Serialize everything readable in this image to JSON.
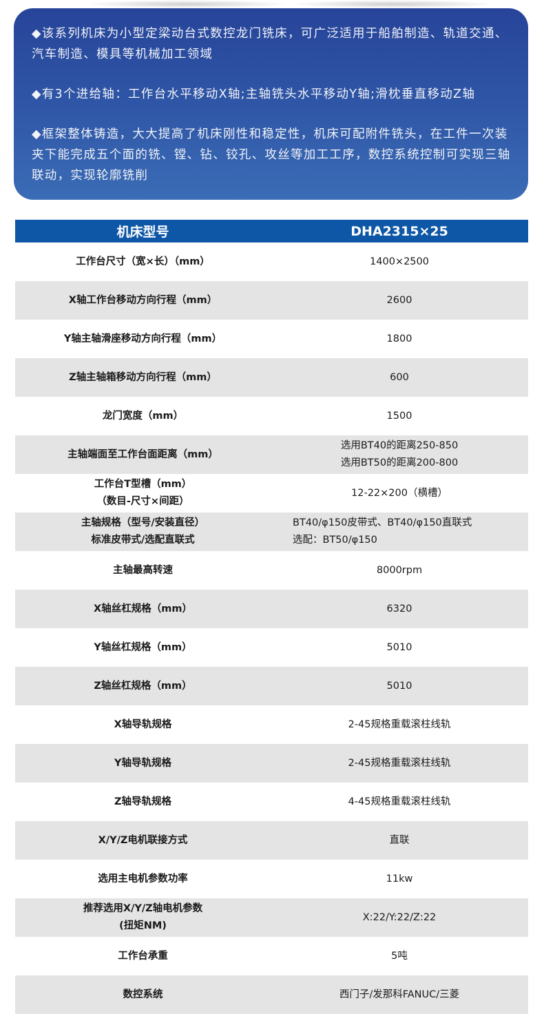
{
  "intro": {
    "paragraphs": [
      "◆该系列机床为小型定梁动台式数控龙门铣床，可广泛适用于船舶制造、轨道交通、汽车制造、模具等机械加工领域",
      "◆有3个进给轴：工作台水平移动X轴;主轴铣头水平移动Y轴;滑枕垂直移动Z轴",
      "◆框架整体铸造，大大提高了机床刚性和稳定性，机床可配附件铣头，在工件一次装夹下能完成五个面的铣、镗、钻、铰孔、攻丝等加工工序，数控系统控制可实现三轴联动，实现轮廓铣削"
    ]
  },
  "table": {
    "header": {
      "label": "机床型号",
      "value": "DHA2315×25"
    },
    "rows": [
      {
        "label": [
          "工作台尺寸（宽×长）（mm）"
        ],
        "value": [
          "1400×2500"
        ]
      },
      {
        "label": [
          "X轴工作台移动方向行程（mm）"
        ],
        "value": [
          "2600"
        ]
      },
      {
        "label": [
          "Y轴主轴滑座移动方向行程（mm）"
        ],
        "value": [
          "1800"
        ]
      },
      {
        "label": [
          "Z轴主轴箱移动方向行程（mm）"
        ],
        "value": [
          "600"
        ]
      },
      {
        "label": [
          "龙门宽度（mm）"
        ],
        "value": [
          "1500"
        ]
      },
      {
        "label": [
          "主轴端面至工作台面距离（mm）"
        ],
        "value": [
          "选用BT40的距离250-850",
          "选用BT50的距离200-800"
        ]
      },
      {
        "label": [
          "工作台T型槽（mm）",
          "（数目-尺寸×间距）"
        ],
        "value": [
          "12-22×200（横槽）"
        ]
      },
      {
        "label": [
          "主轴规格（型号/安装直径）",
          "标准皮带式/选配直联式"
        ],
        "value": [
          "BT40/φ150皮带式、BT40/φ150直联式",
          "选配：BT50/φ150"
        ],
        "align": "left"
      },
      {
        "label": [
          "主轴最高转速"
        ],
        "value": [
          "8000rpm"
        ]
      },
      {
        "label": [
          "X轴丝杠规格（mm）"
        ],
        "value": [
          "6320"
        ]
      },
      {
        "label": [
          "Y轴丝杠规格（mm）"
        ],
        "value": [
          "5010"
        ]
      },
      {
        "label": [
          "Z轴丝杠规格（mm）"
        ],
        "value": [
          "5010"
        ]
      },
      {
        "label": [
          "X轴导轨规格"
        ],
        "value": [
          "2-45规格重载滚柱线轨"
        ]
      },
      {
        "label": [
          "Y轴导轨规格"
        ],
        "value": [
          "2-45规格重载滚柱线轨"
        ]
      },
      {
        "label": [
          "Z轴导轨规格"
        ],
        "value": [
          "4-45规格重载滚柱线轨"
        ]
      },
      {
        "label": [
          "X/Y/Z电机联接方式"
        ],
        "value": [
          "直联"
        ]
      },
      {
        "label": [
          "选用主电机参数功率"
        ],
        "value": [
          "11kw"
        ]
      },
      {
        "label": [
          "推荐选用X/Y/Z轴电机参数",
          "(扭矩NM)"
        ],
        "value": [
          "X:22/Y:22/Z:22"
        ]
      },
      {
        "label": [
          "工作台承重"
        ],
        "value": [
          "5吨"
        ]
      },
      {
        "label": [
          "数控系统"
        ],
        "value": [
          "西门子/发那科FANUC/三菱"
        ]
      }
    ]
  },
  "colors": {
    "header_blue": "#0d57a6",
    "row_gray": "#e5e4e5",
    "intro_top": "#27449a",
    "intro_bottom": "#3b6cb6"
  }
}
